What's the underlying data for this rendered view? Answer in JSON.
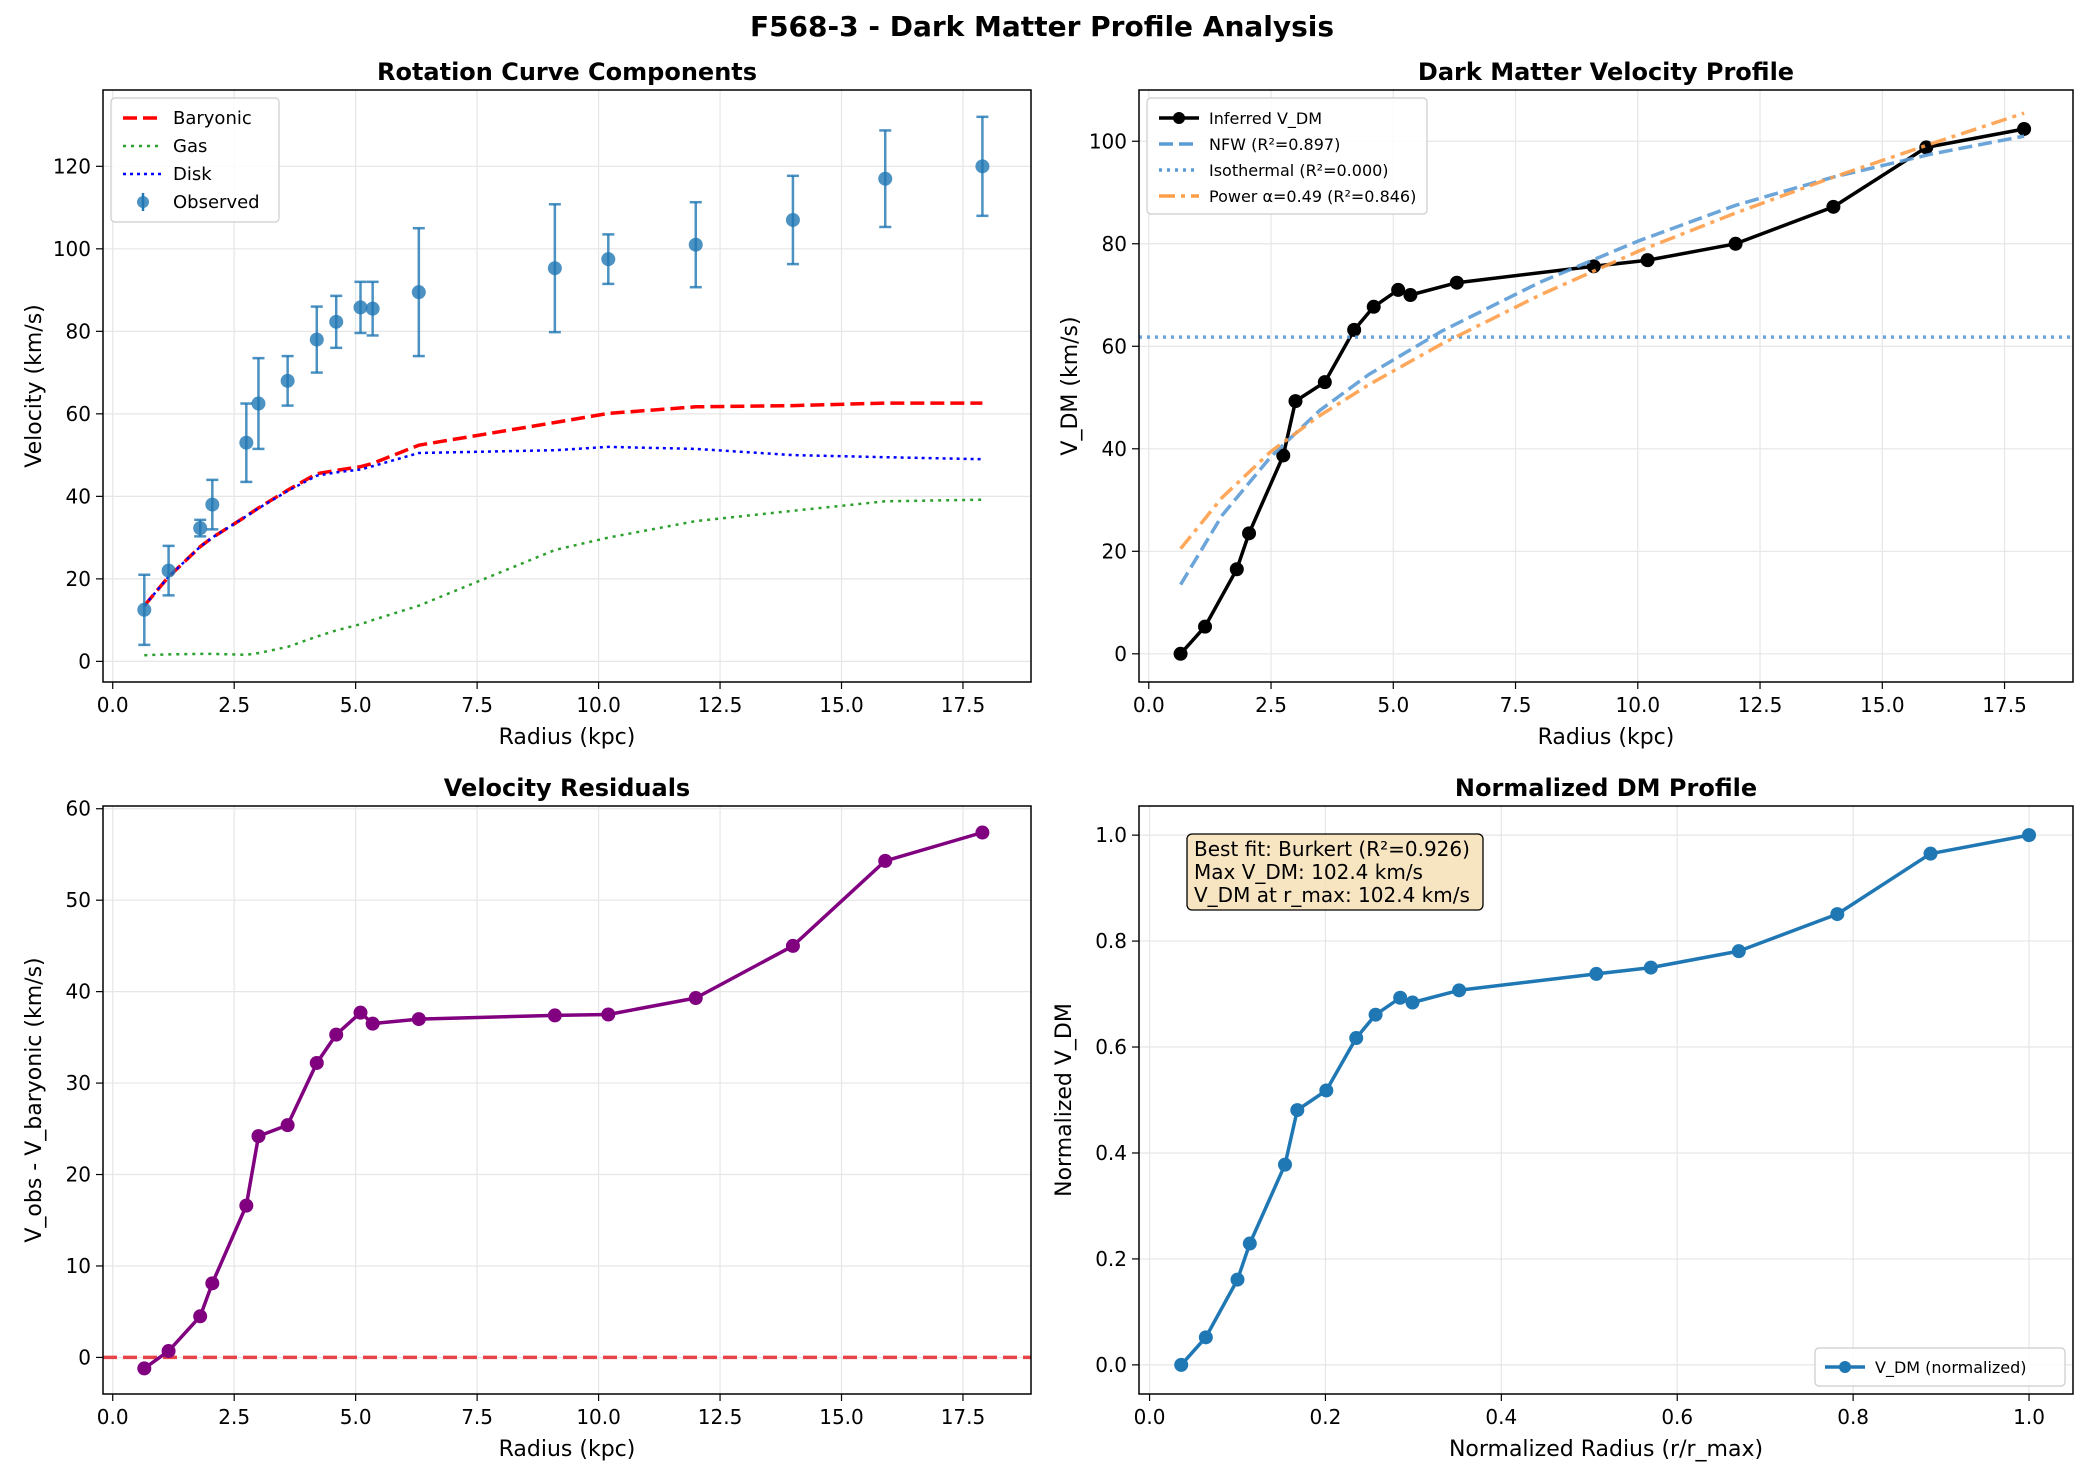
{
  "figure": {
    "title": "F568-3 - Dark Matter Profile Analysis"
  },
  "colors": {
    "observed": "#1f77b4",
    "baryonic": "#ff0000",
    "gas": "#2ca02c",
    "disk": "#0000ff",
    "dm": "#000000",
    "nfw": "#5b9bd5",
    "isothermal": "#5b9bd5",
    "power": "#ff9f4a",
    "residuals": "#800080",
    "normalized": "#1f77b4",
    "zero_line": "#e41a1c"
  },
  "chart_data": [
    {
      "id": "rotation",
      "type": "line",
      "title": "Rotation Curve Components",
      "xlabel": "Radius (kpc)",
      "ylabel": "Velocity (km/s)",
      "xlim": [
        -0.2,
        18.9
      ],
      "ylim": [
        -5.0,
        138.5
      ],
      "xticks": [
        "0.0",
        "2.5",
        "5.0",
        "7.5",
        "10.0",
        "12.5",
        "15.0",
        "17.5"
      ],
      "xtick_values": [
        0,
        2.5,
        5,
        7.5,
        10,
        12.5,
        15,
        17.5
      ],
      "yticks": [
        "0",
        "20",
        "40",
        "60",
        "80",
        "100",
        "120"
      ],
      "ytick_values": [
        0,
        20,
        40,
        60,
        80,
        100,
        120
      ],
      "grid": true,
      "legend_position": "top-left",
      "series": [
        {
          "name": "Baryonic",
          "style": "dashed",
          "x": [
            0.65,
            1.15,
            1.8,
            2.05,
            2.75,
            3.0,
            3.6,
            4.2,
            4.6,
            5.1,
            5.35,
            6.3,
            9.1,
            10.2,
            12.0,
            14.0,
            15.9,
            17.9
          ],
          "y": [
            13.5,
            20.5,
            27.8,
            30.0,
            35.2,
            37.2,
            41.5,
            45.5,
            46.3,
            47.2,
            48.0,
            52.4,
            57.9,
            60.1,
            61.7,
            62.0,
            62.6,
            62.6
          ]
        },
        {
          "name": "Gas",
          "style": "dotted",
          "x": [
            0.65,
            1.15,
            1.8,
            2.05,
            2.75,
            3.0,
            3.6,
            4.2,
            4.6,
            5.1,
            5.35,
            6.3,
            9.1,
            10.2,
            12.0,
            14.0,
            15.9,
            17.9
          ],
          "y": [
            1.5,
            1.7,
            1.8,
            1.8,
            1.6,
            2.0,
            3.5,
            6.0,
            7.5,
            9.0,
            10.0,
            13.5,
            27.0,
            30.0,
            34.0,
            36.5,
            38.8,
            39.2
          ]
        },
        {
          "name": "Disk",
          "style": "dotted",
          "x": [
            0.65,
            1.15,
            1.8,
            2.05,
            2.75,
            3.0,
            3.6,
            4.2,
            4.6,
            5.1,
            5.35,
            6.3,
            9.1,
            10.2,
            12.0,
            14.0,
            15.9,
            17.9
          ],
          "y": [
            13.5,
            20.5,
            27.8,
            30.0,
            35.2,
            37.1,
            41.3,
            45.0,
            45.8,
            46.5,
            47.3,
            50.5,
            51.2,
            52.0,
            51.5,
            50.0,
            49.5,
            49.0
          ]
        },
        {
          "name": "Observed",
          "style": "errorbar",
          "x": [
            0.65,
            1.15,
            1.8,
            2.05,
            2.75,
            3.0,
            3.6,
            4.2,
            4.6,
            5.1,
            5.35,
            6.3,
            9.1,
            10.2,
            12.0,
            14.0,
            15.9,
            17.9
          ],
          "y": [
            12.5,
            22.0,
            32.3,
            38.0,
            53.0,
            62.5,
            68.0,
            78.0,
            82.3,
            85.8,
            85.5,
            89.5,
            95.3,
            97.5,
            101.0,
            107.0,
            117.0,
            120.0
          ],
          "err": [
            8.5,
            6.0,
            2.0,
            6.0,
            9.5,
            11.0,
            6.0,
            8.0,
            6.3,
            6.2,
            6.5,
            15.5,
            15.5,
            6.0,
            10.3,
            10.7,
            11.7,
            12.0
          ]
        }
      ]
    },
    {
      "id": "dm_profile",
      "type": "line",
      "title": "Dark Matter Velocity Profile",
      "xlabel": "Radius (kpc)",
      "ylabel": "V_DM (km/s)",
      "xlim": [
        -0.2,
        18.9
      ],
      "ylim": [
        -5.5,
        110.0
      ],
      "xticks": [
        "0.0",
        "2.5",
        "5.0",
        "7.5",
        "10.0",
        "12.5",
        "15.0",
        "17.5"
      ],
      "xtick_values": [
        0,
        2.5,
        5,
        7.5,
        10,
        12.5,
        15,
        17.5
      ],
      "yticks": [
        "0",
        "20",
        "40",
        "60",
        "80",
        "100"
      ],
      "ytick_values": [
        0,
        20,
        40,
        60,
        80,
        100
      ],
      "grid": true,
      "legend_position": "top-left",
      "series": [
        {
          "name": "Inferred V_DM",
          "style": "solid-markers",
          "x": [
            0.65,
            1.15,
            1.8,
            2.05,
            2.75,
            3.0,
            3.6,
            4.2,
            4.6,
            5.1,
            5.35,
            6.3,
            9.1,
            10.2,
            12.0,
            14.0,
            15.9,
            17.9
          ],
          "y": [
            0.0,
            5.3,
            16.5,
            23.5,
            38.7,
            49.3,
            53.0,
            63.2,
            67.7,
            71.0,
            70.0,
            72.4,
            75.6,
            76.8,
            80.0,
            87.2,
            98.8,
            102.4
          ]
        },
        {
          "name": "NFW (R²=0.897)",
          "style": "dashed",
          "x": [
            0.65,
            1.5,
            2.5,
            3.5,
            4.5,
            6.0,
            8.0,
            10.0,
            12.0,
            14.0,
            16.0,
            17.9
          ],
          "y": [
            13.5,
            27.0,
            38.5,
            47.5,
            54.5,
            63.0,
            72.5,
            80.5,
            87.5,
            93.0,
            97.5,
            101.0
          ]
        },
        {
          "name": "Isothermal (R²=0.000)",
          "style": "dotted",
          "x": [
            -0.2,
            18.9
          ],
          "y": [
            61.8,
            61.8
          ]
        },
        {
          "name": "Power α=0.49 (R²=0.846)",
          "style": "dashdot",
          "x": [
            0.65,
            1.5,
            2.5,
            3.5,
            4.5,
            6.0,
            8.0,
            10.0,
            12.0,
            14.0,
            16.0,
            17.9
          ],
          "y": [
            20.5,
            30.5,
            39.5,
            46.5,
            52.5,
            60.5,
            70.0,
            78.5,
            86.0,
            93.0,
            99.5,
            105.5
          ]
        }
      ]
    },
    {
      "id": "residuals",
      "type": "line",
      "title": "Velocity Residuals",
      "xlabel": "Radius (kpc)",
      "ylabel": "V_obs - V_baryonic (km/s)",
      "xlim": [
        -0.2,
        18.9
      ],
      "ylim": [
        -4.0,
        60.3
      ],
      "xticks": [
        "0.0",
        "2.5",
        "5.0",
        "7.5",
        "10.0",
        "12.5",
        "15.0",
        "17.5"
      ],
      "xtick_values": [
        0,
        2.5,
        5,
        7.5,
        10,
        12.5,
        15,
        17.5
      ],
      "yticks": [
        "0",
        "10",
        "20",
        "30",
        "40",
        "50",
        "60"
      ],
      "ytick_values": [
        0,
        10,
        20,
        30,
        40,
        50,
        60
      ],
      "grid": true,
      "reference_line_y": 0,
      "series": [
        {
          "name": "",
          "style": "solid-markers",
          "x": [
            0.65,
            1.15,
            1.8,
            2.05,
            2.75,
            3.0,
            3.6,
            4.2,
            4.6,
            5.1,
            5.35,
            6.3,
            9.1,
            10.2,
            12.0,
            14.0,
            15.9,
            17.9
          ],
          "y": [
            -1.2,
            0.7,
            4.5,
            8.1,
            16.6,
            24.2,
            25.4,
            32.2,
            35.3,
            37.7,
            36.5,
            37.0,
            37.4,
            37.5,
            39.3,
            45.0,
            54.3,
            57.4
          ]
        }
      ]
    },
    {
      "id": "normalized",
      "type": "line",
      "title": "Normalized DM Profile",
      "xlabel": "Normalized Radius (r/r_max)",
      "ylabel": "Normalized V_DM",
      "xlim": [
        -0.012,
        1.05
      ],
      "ylim": [
        -0.055,
        1.055
      ],
      "xticks": [
        "0.0",
        "0.2",
        "0.4",
        "0.6",
        "0.8",
        "1.0"
      ],
      "xtick_values": [
        0,
        0.2,
        0.4,
        0.6,
        0.8,
        1.0
      ],
      "yticks": [
        "0.0",
        "0.2",
        "0.4",
        "0.6",
        "0.8",
        "1.0"
      ],
      "ytick_values": [
        0,
        0.2,
        0.4,
        0.6,
        0.8,
        1.0
      ],
      "grid": true,
      "legend_position": "bottom-right",
      "annotation": [
        "Best fit: Burkert (R²=0.926)",
        "Max V_DM: 102.4 km/s",
        "V_DM at r_max: 102.4 km/s"
      ],
      "series": [
        {
          "name": "V_DM (normalized)",
          "style": "solid-markers",
          "x": [
            0.036,
            0.064,
            0.1,
            0.114,
            0.154,
            0.168,
            0.201,
            0.235,
            0.257,
            0.285,
            0.299,
            0.352,
            0.508,
            0.57,
            0.67,
            0.782,
            0.888,
            1.0
          ],
          "y": [
            0.0,
            0.052,
            0.161,
            0.229,
            0.378,
            0.481,
            0.518,
            0.617,
            0.661,
            0.693,
            0.684,
            0.707,
            0.738,
            0.75,
            0.781,
            0.851,
            0.965,
            1.0
          ]
        }
      ]
    }
  ]
}
